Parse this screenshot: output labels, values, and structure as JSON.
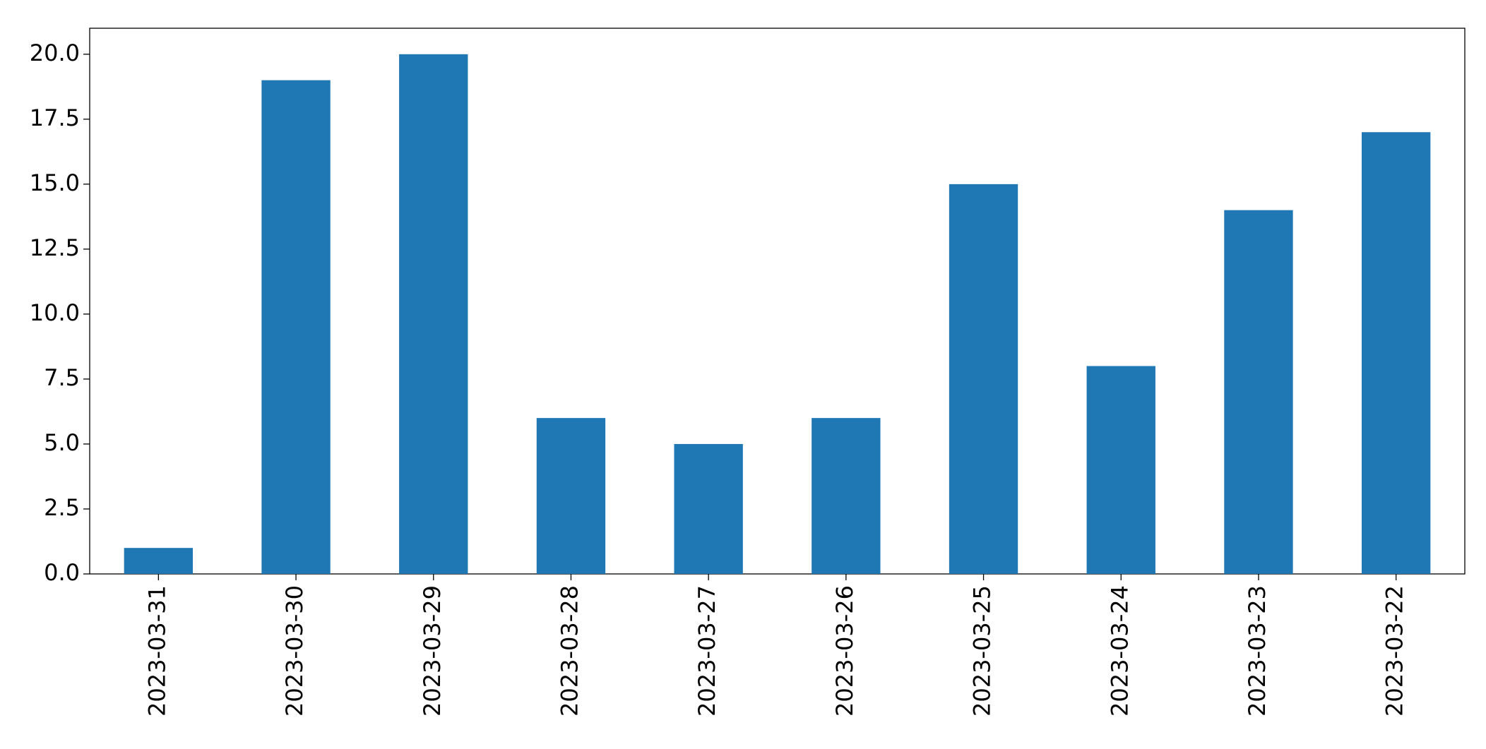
{
  "chart_data": {
    "type": "bar",
    "categories": [
      "2023-03-31",
      "2023-03-30",
      "2023-03-29",
      "2023-03-28",
      "2023-03-27",
      "2023-03-26",
      "2023-03-25",
      "2023-03-24",
      "2023-03-23",
      "2023-03-22"
    ],
    "values": [
      1,
      19,
      20,
      6,
      5,
      6,
      15,
      8,
      14,
      17
    ],
    "color": "#1f77b4",
    "ylim": [
      0,
      21
    ],
    "yticks": [
      {
        "value": 0,
        "label": "0.0"
      },
      2.5,
      {
        "value": 5,
        "label": "5.0"
      },
      7.5,
      {
        "value": 10,
        "label": "10.0"
      },
      12.5,
      {
        "value": 15,
        "label": "15.0"
      },
      17.5,
      {
        "value": 20,
        "label": "20.0"
      }
    ],
    "grid": false
  }
}
